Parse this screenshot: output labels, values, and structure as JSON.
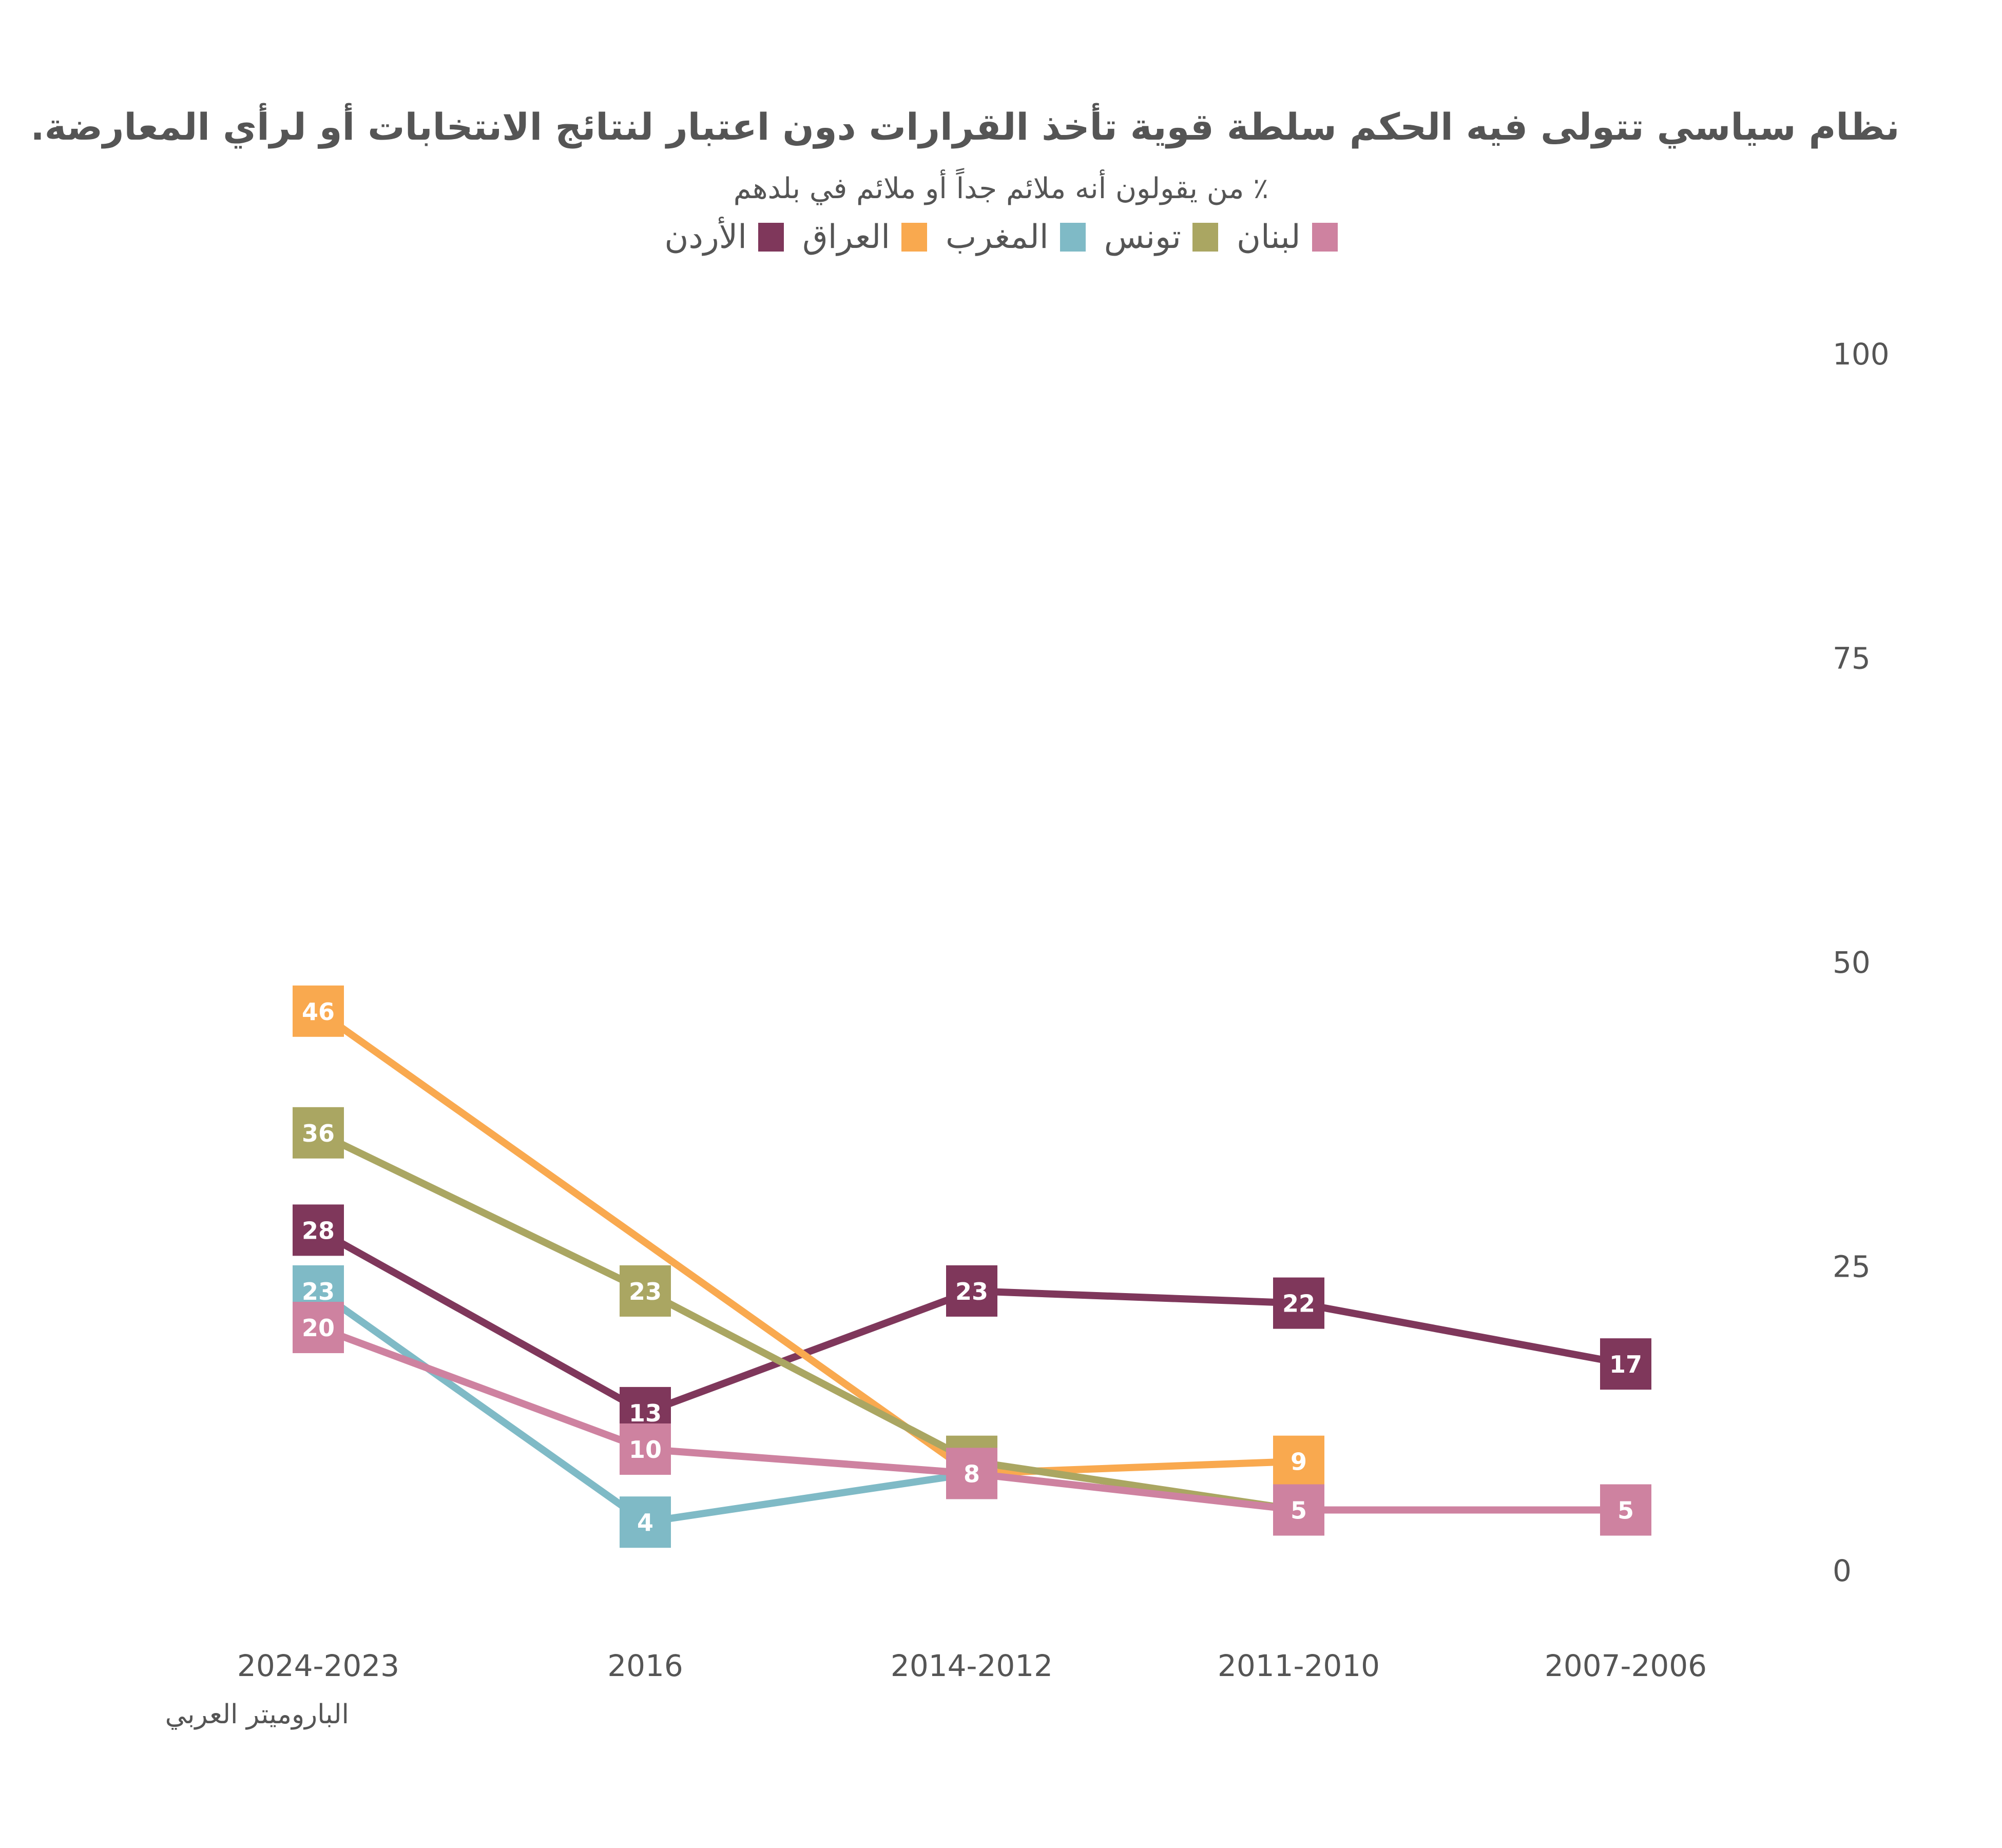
{
  "title": "نظام سياسي تتولى فيه الحكم سلطة قوية تأخذ القرارات دون اعتبار لنتائج الانتخابات أو لرأي المعارضة.",
  "subtitle": "٪ من يقولون أنه ملائم جداً أو ملائم في بلدهم",
  "source": "الباروميتر العربي",
  "chart_data": {
    "type": "line",
    "title": "نظام سياسي تتولى فيه الحكم سلطة قوية تأخذ القرارات دون اعتبار لنتائج الانتخابات أو لرأي المعارضة.",
    "subtitle": "٪ من يقولون أنه ملائم جداً أو ملائم في بلدهم",
    "xlabel": "",
    "ylabel": "",
    "x_direction": "right-to-left",
    "y_axis_position": "right",
    "categories": [
      "2024-2023",
      "2016",
      "2014-2012",
      "2011-2010",
      "2007-2006"
    ],
    "ylim": [
      0,
      100
    ],
    "yticks": [
      "0",
      "25",
      "50",
      "75",
      "100"
    ],
    "grid": false,
    "legend_position": "top",
    "series": [
      {
        "name": "لبنان",
        "color": "#CE82A0",
        "values": [
          20,
          10,
          8,
          5,
          5
        ]
      },
      {
        "name": "تونس",
        "color": "#AAA662",
        "values": [
          36,
          23,
          9,
          5,
          null
        ]
      },
      {
        "name": "المغرب",
        "color": "#7FBAC6",
        "values": [
          23,
          4,
          8,
          null,
          null
        ]
      },
      {
        "name": "العراق",
        "color": "#F9A94F",
        "values": [
          46,
          null,
          8,
          9,
          null
        ]
      },
      {
        "name": "الأردن",
        "color": "#7F375B",
        "values": [
          28,
          13,
          23,
          22,
          17
        ]
      }
    ]
  }
}
